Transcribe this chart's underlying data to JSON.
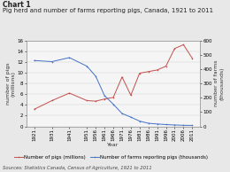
{
  "title_line1": "Chart 1",
  "title_line2": "Pig herd and number of farms reporting pigs, Canada, 1921 to 2011",
  "ylabel_left": "number of pigs\n(millions)",
  "ylabel_right": "number of farms\n(thousands)",
  "xlabel": "Year",
  "years": [
    1921,
    1931,
    1941,
    1951,
    1956,
    1961,
    1966,
    1971,
    1976,
    1981,
    1986,
    1991,
    1996,
    2001,
    2006,
    2011
  ],
  "pigs_millions": [
    3.2,
    4.8,
    6.2,
    4.8,
    4.7,
    5.1,
    5.4,
    9.2,
    5.8,
    9.9,
    10.2,
    10.5,
    11.2,
    14.5,
    15.2,
    12.7
  ],
  "farms_thousands": [
    460,
    452,
    480,
    420,
    350,
    215,
    155,
    90,
    65,
    37,
    22,
    17,
    13,
    10,
    8,
    7
  ],
  "pig_color": "#c0504d",
  "farm_color": "#4472c4",
  "background_color": "#e8e8e8",
  "plot_bg_color": "#f5f5f5",
  "ylim_left": [
    0,
    16
  ],
  "ylim_right": [
    0,
    600
  ],
  "yticks_left": [
    0,
    2,
    4,
    6,
    8,
    10,
    12,
    14,
    16
  ],
  "yticks_right": [
    0,
    100,
    200,
    300,
    400,
    500,
    600
  ],
  "source_text": "Sources: Statistics Canada, Census of Agriculture, 1921 to 2011",
  "legend_pig": "Number of pigs (millions)",
  "legend_farm": "Number of farms reporting pigs (thousands)",
  "title1_fontsize": 5.5,
  "title2_fontsize": 5.0,
  "axis_label_fontsize": 4.5,
  "tick_fontsize": 4.0,
  "legend_fontsize": 4.0,
  "source_fontsize": 3.8
}
